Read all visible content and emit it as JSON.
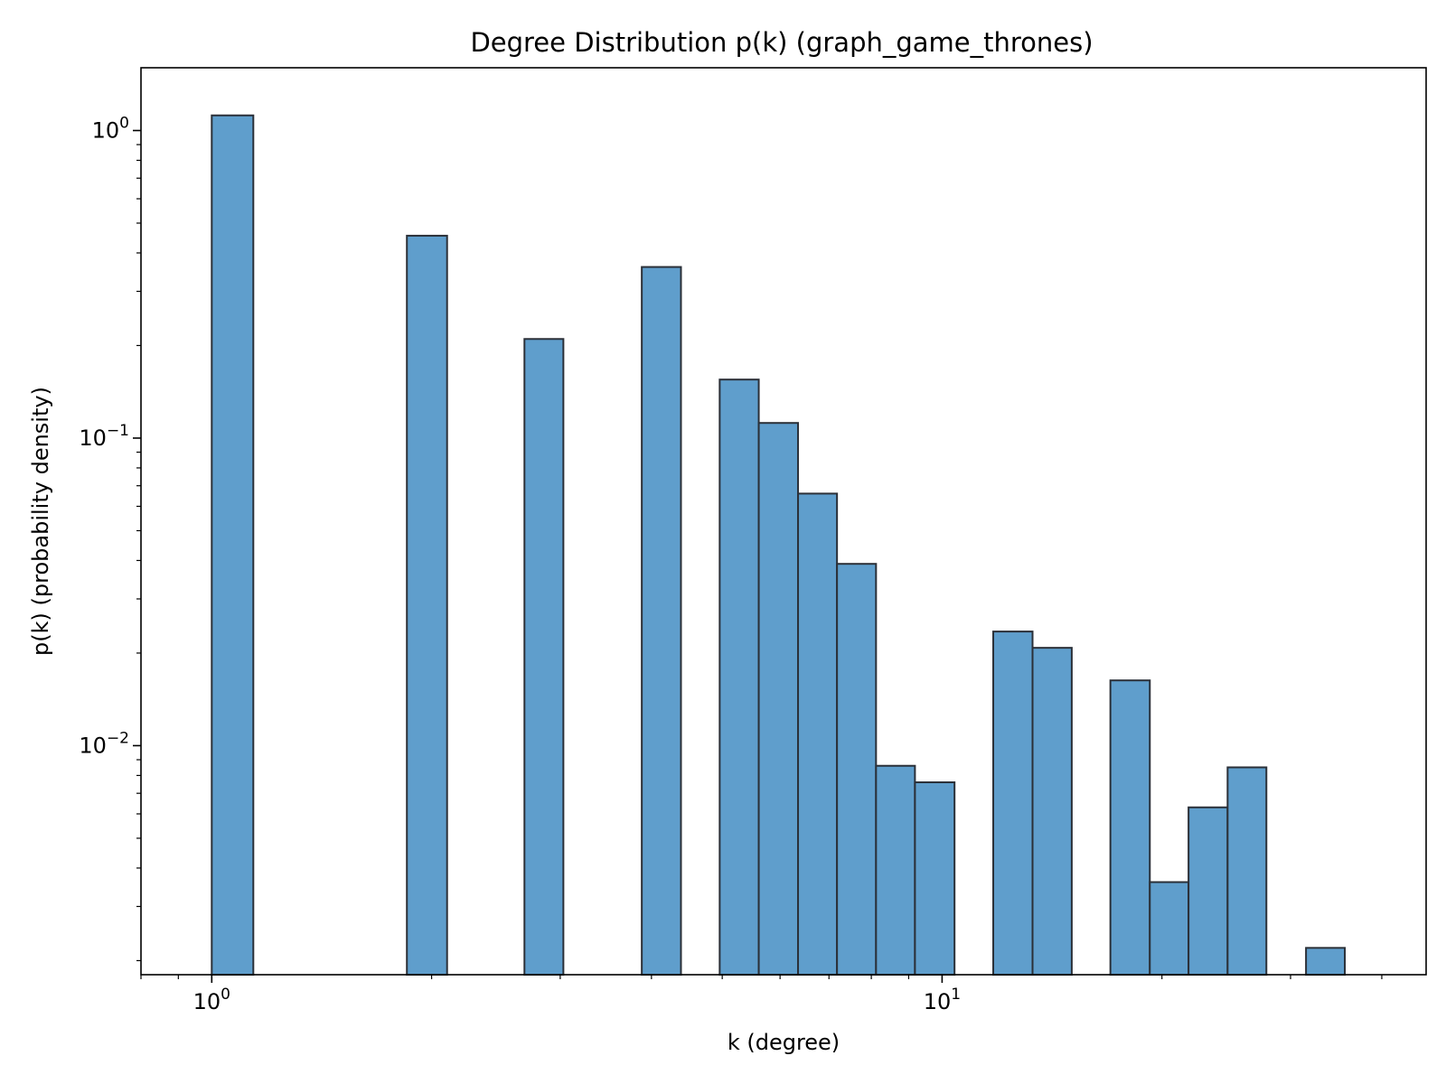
{
  "chart_data": {
    "type": "bar",
    "title": "Degree Distribution p(k) (graph_game_thrones)",
    "xlabel": "k (degree)",
    "ylabel": "p(k) (probability density)",
    "x_scale": "log",
    "y_scale": "log",
    "xlim": [
      0.8,
      46
    ],
    "ylim": [
      0.0018,
      1.6
    ],
    "grid": false,
    "x_ticks": [
      {
        "base": "10",
        "exp": "0",
        "value": 1
      },
      {
        "base": "10",
        "exp": "1",
        "value": 10
      }
    ],
    "y_ticks": [
      {
        "base": "10",
        "exp": "0",
        "value": 1
      },
      {
        "base": "10",
        "exp": "−1",
        "value": 0.1
      },
      {
        "base": "10",
        "exp": "−2",
        "value": 0.01
      }
    ],
    "bar_color": "#5f9ecc",
    "edge_color": "#2b3038",
    "series": [
      {
        "bins": [
          {
            "x0": 1.0,
            "x1": 1.14,
            "value": 1.12
          },
          {
            "x0": 1.85,
            "x1": 2.1,
            "value": 0.455
          },
          {
            "x0": 2.68,
            "x1": 3.03,
            "value": 0.21
          },
          {
            "x0": 3.88,
            "x1": 4.39,
            "value": 0.36
          },
          {
            "x0": 4.96,
            "x1": 5.61,
            "value": 0.155
          },
          {
            "x0": 5.61,
            "x1": 6.35,
            "value": 0.112
          },
          {
            "x0": 6.35,
            "x1": 7.18,
            "value": 0.066
          },
          {
            "x0": 7.18,
            "x1": 8.12,
            "value": 0.039
          },
          {
            "x0": 8.12,
            "x1": 9.18,
            "value": 0.0086
          },
          {
            "x0": 9.18,
            "x1": 10.4,
            "value": 0.0076
          },
          {
            "x0": 11.75,
            "x1": 13.3,
            "value": 0.0235
          },
          {
            "x0": 13.3,
            "x1": 15.05,
            "value": 0.0208
          },
          {
            "x0": 17.0,
            "x1": 19.25,
            "value": 0.0163
          },
          {
            "x0": 19.25,
            "x1": 21.75,
            "value": 0.0036
          },
          {
            "x0": 21.75,
            "x1": 24.6,
            "value": 0.0063
          },
          {
            "x0": 24.6,
            "x1": 27.8,
            "value": 0.0085
          },
          {
            "x0": 31.5,
            "x1": 35.6,
            "value": 0.0022
          }
        ]
      }
    ]
  }
}
